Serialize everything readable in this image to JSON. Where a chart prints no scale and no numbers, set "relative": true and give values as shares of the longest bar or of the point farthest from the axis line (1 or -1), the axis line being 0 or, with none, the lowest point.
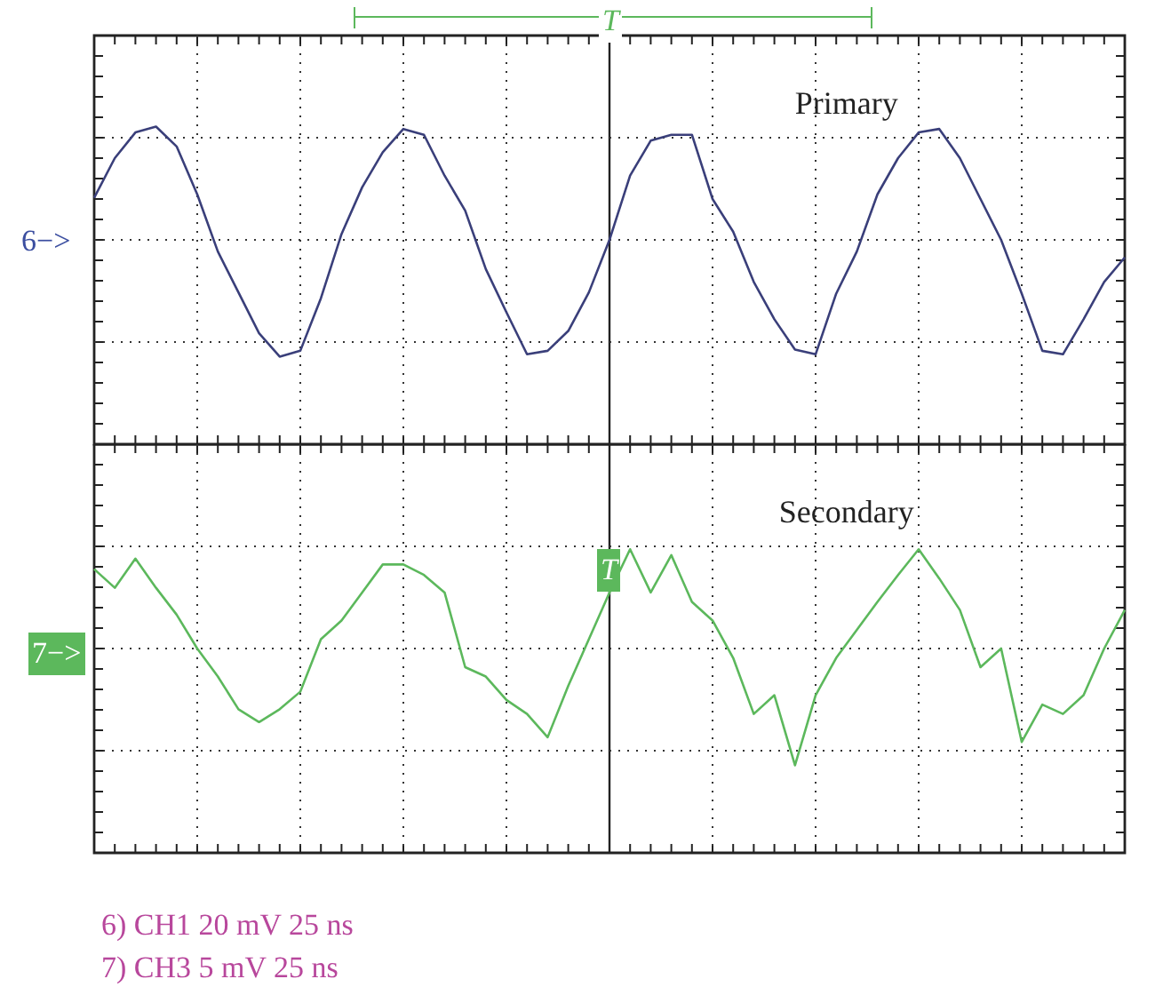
{
  "chart_data": [
    {
      "type": "line",
      "relative": true,
      "grid": true,
      "legend": false,
      "marker": "none",
      "categories": [
        null,
        null,
        null,
        null,
        null,
        null,
        null,
        null,
        null,
        null,
        null,
        null,
        null,
        null,
        null,
        null,
        null,
        null,
        null,
        null,
        null,
        null,
        null,
        null,
        null,
        null,
        null,
        null,
        null,
        null,
        null,
        null,
        null,
        null,
        null,
        null,
        null,
        null,
        null,
        null,
        null,
        null,
        null,
        null,
        null,
        null,
        null,
        null,
        null,
        null,
        null
      ],
      "series": [
        {
          "name": "Primary",
          "color": "#3a3f7a",
          "values": [
            0.36,
            0.7,
            0.92,
            0.97,
            0.8,
            0.39,
            -0.1,
            -0.45,
            -0.8,
            -1.0,
            -0.95,
            -0.5,
            0.05,
            0.45,
            0.75,
            0.95,
            0.9,
            0.55,
            0.25,
            -0.25,
            -0.62,
            -0.98,
            -0.95,
            -0.78,
            -0.45,
            0.0,
            0.55,
            0.85,
            0.9,
            0.9,
            0.35,
            0.07,
            -0.36,
            -0.68,
            -0.94,
            -0.98,
            -0.46,
            -0.1,
            0.39,
            0.7,
            0.92,
            0.95,
            0.7,
            0.35,
            0.0,
            -0.46,
            -0.95,
            -0.98,
            -0.68,
            -0.36,
            -0.15
          ]
        }
      ],
      "annotations": [
        "T",
        "6−>"
      ]
    },
    {
      "type": "line",
      "relative": true,
      "grid": true,
      "legend": false,
      "marker": "none",
      "categories": [
        null,
        null,
        null,
        null,
        null,
        null,
        null,
        null,
        null,
        null,
        null,
        null,
        null,
        null,
        null,
        null,
        null,
        null,
        null,
        null,
        null,
        null,
        null,
        null,
        null,
        null,
        null,
        null,
        null,
        null,
        null,
        null,
        null,
        null,
        null,
        null,
        null,
        null,
        null,
        null,
        null,
        null,
        null,
        null,
        null,
        null,
        null,
        null,
        null,
        null,
        null
      ],
      "series": [
        {
          "name": "Secondary",
          "color": "#5cb85c",
          "values": [
            0.68,
            0.52,
            0.77,
            0.52,
            0.29,
            0.0,
            -0.24,
            -0.52,
            -0.63,
            -0.52,
            -0.37,
            0.08,
            0.24,
            0.48,
            0.72,
            0.72,
            0.63,
            0.48,
            -0.16,
            -0.24,
            -0.44,
            -0.56,
            -0.76,
            -0.32,
            0.08,
            0.48,
            0.85,
            0.48,
            0.8,
            0.4,
            0.24,
            -0.08,
            -0.56,
            -0.4,
            -1.0,
            -0.4,
            -0.08,
            0.16,
            0.4,
            0.63,
            0.85,
            0.6,
            0.33,
            -0.16,
            0.0,
            -0.8,
            -0.48,
            -0.56,
            -0.4,
            0.0,
            0.33
          ]
        }
      ],
      "annotations": [
        "T",
        "7−>",
        "6) CH1 20 mV 25 ns",
        "7) CH3 5 mV 25 ns"
      ]
    }
  ]
}
